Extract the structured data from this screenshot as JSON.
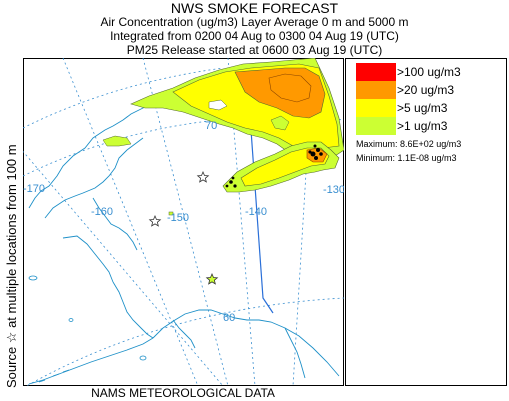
{
  "title": {
    "line1": "NWS SMOKE FORECAST",
    "line2": "Air Concentration (ug/m3) Layer Average    0 m and  5000 m",
    "line3": "Integrated from 0200 04 Aug to 0300 04 Aug 19 (UTC)",
    "line4": "PM25 Release started at 0600 03 Aug 19 (UTC)"
  },
  "side_label": "Source ☆  at multiple locations   from   100 m",
  "footer": "NAMS METEOROLOGICAL DATA",
  "map_labels": {
    "lon_170": "-170",
    "lon_160": "-160",
    "lon_150": "-150",
    "lon_140": "-140",
    "lon_130": "-130",
    "lat_70": "70",
    "lat_60": "60"
  },
  "legend": {
    "items": [
      {
        "label": ">100 ug/m3",
        "color": "#ff0000"
      },
      {
        "label": ">20 ug/m3",
        "color": "#ff9900"
      },
      {
        "label": ">5 ug/m3",
        "color": "#ffff00"
      },
      {
        "label": ">1 ug/m3",
        "color": "#ccff33"
      }
    ],
    "maximum": "Maximum: 8.6E+02 ug/m3",
    "minimum": "Minimum: 1.1E-08 ug/m3"
  },
  "colors": {
    "coast": "#1e90c8",
    "grid": "#3a8fd0",
    "boundary": "#2a6fd8",
    "smoke_red": "#ff0000",
    "smoke_orange": "#ff9900",
    "smoke_yellow": "#ffff00",
    "smoke_green": "#ccff33"
  }
}
